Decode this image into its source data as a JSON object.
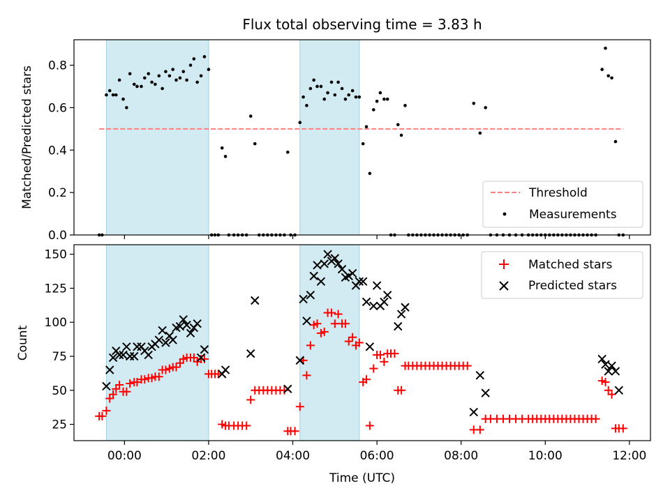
{
  "chart_data": {
    "title": "Flux total observing time = 3.83 h",
    "xlabel": "Time (UTC)",
    "x_unit": "hours (UTC, relative to 00:00)",
    "xlim": [
      -1.2,
      12.5
    ],
    "xticks": [
      {
        "h": 0,
        "label": "00:00"
      },
      {
        "h": 2,
        "label": "02:00"
      },
      {
        "h": 4,
        "label": "04:00"
      },
      {
        "h": 6,
        "label": "06:00"
      },
      {
        "h": 8,
        "label": "08:00"
      },
      {
        "h": 10,
        "label": "10:00"
      },
      {
        "h": 12,
        "label": "12:00"
      }
    ],
    "observing_windows": [
      [
        -0.43,
        2.0
      ],
      [
        4.17,
        5.58
      ]
    ],
    "colors": {
      "window": "#add8e6",
      "threshold": "#ff7f7f",
      "matched": "#ff0000",
      "predicted": "#000000",
      "measurement": "#000000"
    },
    "top": {
      "type": "scatter",
      "ylabel": "Matched/Predicted stars",
      "ylim": [
        0,
        0.92
      ],
      "yticks": [
        "0.0",
        "0.2",
        "0.4",
        "0.6",
        "0.8"
      ],
      "threshold": 0.5,
      "threshold_range": [
        -0.6,
        11.85
      ],
      "legend": {
        "threshold": "Threshold",
        "measurements": "Measurements"
      },
      "legend_position": "lower right",
      "points": [
        [
          -0.6,
          0
        ],
        [
          -0.53,
          0
        ],
        [
          -0.43,
          0.66
        ],
        [
          -0.35,
          0.68
        ],
        [
          -0.27,
          0.66
        ],
        [
          -0.2,
          0.66
        ],
        [
          -0.12,
          0.73
        ],
        [
          -0.03,
          0.64
        ],
        [
          0.05,
          0.6
        ],
        [
          0.13,
          0.76
        ],
        [
          0.23,
          0.71
        ],
        [
          0.3,
          0.7
        ],
        [
          0.4,
          0.7
        ],
        [
          0.48,
          0.74
        ],
        [
          0.57,
          0.76
        ],
        [
          0.65,
          0.72
        ],
        [
          0.73,
          0.71
        ],
        [
          0.82,
          0.75
        ],
        [
          0.9,
          0.69
        ],
        [
          0.98,
          0.77
        ],
        [
          1.07,
          0.75
        ],
        [
          1.15,
          0.78
        ],
        [
          1.23,
          0.73
        ],
        [
          1.32,
          0.74
        ],
        [
          1.4,
          0.77
        ],
        [
          1.48,
          0.73
        ],
        [
          1.57,
          0.8
        ],
        [
          1.65,
          0.83
        ],
        [
          1.73,
          0.72
        ],
        [
          1.82,
          0.75
        ],
        [
          1.9,
          0.84
        ],
        [
          2.0,
          0.78
        ],
        [
          2.07,
          0
        ],
        [
          2.15,
          0
        ],
        [
          2.23,
          0
        ],
        [
          2.32,
          0.41
        ],
        [
          2.4,
          0.37
        ],
        [
          2.48,
          0
        ],
        [
          2.6,
          0
        ],
        [
          2.7,
          0
        ],
        [
          2.8,
          0
        ],
        [
          2.9,
          0
        ],
        [
          3.0,
          0.56
        ],
        [
          3.1,
          0.43
        ],
        [
          3.2,
          0
        ],
        [
          3.3,
          0
        ],
        [
          3.4,
          0
        ],
        [
          3.5,
          0
        ],
        [
          3.6,
          0
        ],
        [
          3.7,
          0
        ],
        [
          3.8,
          0
        ],
        [
          3.88,
          0.39
        ],
        [
          3.95,
          0
        ],
        [
          4.05,
          0
        ],
        [
          4.17,
          0.53
        ],
        [
          4.25,
          0.65
        ],
        [
          4.33,
          0.61
        ],
        [
          4.42,
          0.69
        ],
        [
          4.5,
          0.73
        ],
        [
          4.58,
          0.7
        ],
        [
          4.67,
          0.7
        ],
        [
          4.75,
          0.64
        ],
        [
          4.83,
          0.67
        ],
        [
          4.92,
          0.72
        ],
        [
          5.0,
          0.66
        ],
        [
          5.08,
          0.72
        ],
        [
          5.17,
          0.69
        ],
        [
          5.25,
          0.64
        ],
        [
          5.33,
          0.66
        ],
        [
          5.42,
          0.68
        ],
        [
          5.5,
          0.65
        ],
        [
          5.58,
          0.65
        ],
        [
          5.67,
          0.43
        ],
        [
          5.75,
          0.51
        ],
        [
          5.83,
          0.29
        ],
        [
          5.92,
          0.59
        ],
        [
          6.0,
          0.63
        ],
        [
          6.08,
          0.67
        ],
        [
          6.17,
          0.64
        ],
        [
          6.25,
          0.64
        ],
        [
          6.33,
          0
        ],
        [
          6.42,
          0
        ],
        [
          6.5,
          0.52
        ],
        [
          6.58,
          0.47
        ],
        [
          6.67,
          0.61
        ],
        [
          6.75,
          0
        ],
        [
          6.85,
          0
        ],
        [
          6.95,
          0
        ],
        [
          7.05,
          0
        ],
        [
          7.15,
          0
        ],
        [
          7.25,
          0
        ],
        [
          7.35,
          0
        ],
        [
          7.45,
          0
        ],
        [
          7.55,
          0
        ],
        [
          7.65,
          0
        ],
        [
          7.75,
          0
        ],
        [
          7.85,
          0
        ],
        [
          7.95,
          0
        ],
        [
          8.05,
          0
        ],
        [
          8.15,
          0
        ],
        [
          8.3,
          0.62
        ],
        [
          8.45,
          0.48
        ],
        [
          8.58,
          0.6
        ],
        [
          8.7,
          0
        ],
        [
          8.85,
          0
        ],
        [
          9.0,
          0
        ],
        [
          9.15,
          0
        ],
        [
          9.3,
          0
        ],
        [
          9.45,
          0
        ],
        [
          9.6,
          0
        ],
        [
          9.7,
          0
        ],
        [
          9.8,
          0
        ],
        [
          9.9,
          0
        ],
        [
          10.0,
          0
        ],
        [
          10.1,
          0
        ],
        [
          10.2,
          0
        ],
        [
          10.3,
          0
        ],
        [
          10.4,
          0
        ],
        [
          10.5,
          0
        ],
        [
          10.6,
          0
        ],
        [
          10.7,
          0
        ],
        [
          10.8,
          0
        ],
        [
          10.9,
          0
        ],
        [
          11.0,
          0
        ],
        [
          11.1,
          0
        ],
        [
          11.2,
          0
        ],
        [
          11.35,
          0.78
        ],
        [
          11.43,
          0.88
        ],
        [
          11.5,
          0.75
        ],
        [
          11.58,
          0.74
        ],
        [
          11.67,
          0.44
        ],
        [
          11.75,
          0
        ],
        [
          11.85,
          0
        ]
      ]
    },
    "bottom": {
      "type": "scatter",
      "ylabel": "Count",
      "ylim": [
        13,
        157
      ],
      "yticks": [
        "25",
        "50",
        "75",
        "100",
        "125",
        "150"
      ],
      "ytick_values": [
        25,
        50,
        75,
        100,
        125,
        150
      ],
      "legend": {
        "matched": "Matched stars",
        "predicted": "Predicted stars"
      },
      "legend_position": "upper right",
      "matched": [
        [
          -0.6,
          31
        ],
        [
          -0.53,
          31
        ],
        [
          -0.43,
          35
        ],
        [
          -0.35,
          44
        ],
        [
          -0.27,
          47
        ],
        [
          -0.2,
          51
        ],
        [
          -0.12,
          54
        ],
        [
          -0.03,
          49
        ],
        [
          0.05,
          49
        ],
        [
          0.13,
          55
        ],
        [
          0.23,
          56
        ],
        [
          0.3,
          56
        ],
        [
          0.4,
          58
        ],
        [
          0.48,
          58
        ],
        [
          0.57,
          59
        ],
        [
          0.65,
          59
        ],
        [
          0.73,
          60
        ],
        [
          0.82,
          60
        ],
        [
          0.9,
          65
        ],
        [
          0.98,
          65
        ],
        [
          1.07,
          66
        ],
        [
          1.15,
          67
        ],
        [
          1.23,
          67
        ],
        [
          1.32,
          70
        ],
        [
          1.4,
          73
        ],
        [
          1.48,
          74
        ],
        [
          1.57,
          74
        ],
        [
          1.65,
          74
        ],
        [
          1.73,
          71
        ],
        [
          1.82,
          73
        ],
        [
          1.9,
          73
        ],
        [
          2.0,
          62
        ],
        [
          2.07,
          62
        ],
        [
          2.15,
          62
        ],
        [
          2.23,
          62
        ],
        [
          2.32,
          25
        ],
        [
          2.4,
          24
        ],
        [
          2.48,
          24
        ],
        [
          2.6,
          24
        ],
        [
          2.7,
          24
        ],
        [
          2.8,
          24
        ],
        [
          2.9,
          24
        ],
        [
          3.0,
          43
        ],
        [
          3.1,
          50
        ],
        [
          3.2,
          50
        ],
        [
          3.3,
          50
        ],
        [
          3.4,
          50
        ],
        [
          3.5,
          50
        ],
        [
          3.6,
          50
        ],
        [
          3.7,
          50
        ],
        [
          3.8,
          50
        ],
        [
          3.88,
          20
        ],
        [
          3.95,
          20
        ],
        [
          4.05,
          20
        ],
        [
          4.17,
          38
        ],
        [
          4.25,
          72
        ],
        [
          4.33,
          61
        ],
        [
          4.42,
          83
        ],
        [
          4.5,
          98
        ],
        [
          4.58,
          99
        ],
        [
          4.67,
          92
        ],
        [
          4.75,
          93
        ],
        [
          4.83,
          107
        ],
        [
          4.92,
          107
        ],
        [
          5.0,
          99
        ],
        [
          5.08,
          106
        ],
        [
          5.17,
          99
        ],
        [
          5.25,
          99
        ],
        [
          5.33,
          86
        ],
        [
          5.42,
          89
        ],
        [
          5.5,
          83
        ],
        [
          5.58,
          85
        ],
        [
          5.67,
          56
        ],
        [
          5.75,
          58
        ],
        [
          5.83,
          24
        ],
        [
          5.92,
          66
        ],
        [
          6.0,
          76
        ],
        [
          6.08,
          76
        ],
        [
          6.17,
          71
        ],
        [
          6.25,
          77
        ],
        [
          6.33,
          77
        ],
        [
          6.42,
          77
        ],
        [
          6.5,
          50
        ],
        [
          6.58,
          50
        ],
        [
          6.67,
          68
        ],
        [
          6.75,
          68
        ],
        [
          6.85,
          68
        ],
        [
          6.95,
          68
        ],
        [
          7.05,
          68
        ],
        [
          7.15,
          68
        ],
        [
          7.25,
          68
        ],
        [
          7.35,
          68
        ],
        [
          7.45,
          68
        ],
        [
          7.55,
          68
        ],
        [
          7.65,
          68
        ],
        [
          7.75,
          68
        ],
        [
          7.85,
          68
        ],
        [
          7.95,
          68
        ],
        [
          8.05,
          68
        ],
        [
          8.15,
          68
        ],
        [
          8.3,
          21
        ],
        [
          8.45,
          21
        ],
        [
          8.58,
          29
        ],
        [
          8.7,
          29
        ],
        [
          8.85,
          29
        ],
        [
          9.0,
          29
        ],
        [
          9.15,
          29
        ],
        [
          9.3,
          29
        ],
        [
          9.45,
          29
        ],
        [
          9.6,
          29
        ],
        [
          9.7,
          29
        ],
        [
          9.8,
          29
        ],
        [
          9.9,
          29
        ],
        [
          10.0,
          29
        ],
        [
          10.1,
          29
        ],
        [
          10.2,
          29
        ],
        [
          10.3,
          29
        ],
        [
          10.4,
          29
        ],
        [
          10.5,
          29
        ],
        [
          10.6,
          29
        ],
        [
          10.7,
          29
        ],
        [
          10.8,
          29
        ],
        [
          10.9,
          29
        ],
        [
          11.0,
          29
        ],
        [
          11.1,
          29
        ],
        [
          11.2,
          29
        ],
        [
          11.35,
          57
        ],
        [
          11.43,
          56
        ],
        [
          11.5,
          50
        ],
        [
          11.58,
          47
        ],
        [
          11.67,
          22
        ],
        [
          11.75,
          22
        ],
        [
          11.85,
          22
        ]
      ],
      "predicted": [
        [
          -0.43,
          53
        ],
        [
          -0.35,
          65
        ],
        [
          -0.27,
          74
        ],
        [
          -0.2,
          79
        ],
        [
          -0.12,
          76
        ],
        [
          -0.03,
          76
        ],
        [
          0.05,
          82
        ],
        [
          0.13,
          75
        ],
        [
          0.23,
          75
        ],
        [
          0.3,
          82
        ],
        [
          0.4,
          82
        ],
        [
          0.48,
          79
        ],
        [
          0.57,
          76
        ],
        [
          0.65,
          82
        ],
        [
          0.73,
          84
        ],
        [
          0.82,
          87
        ],
        [
          0.9,
          94
        ],
        [
          0.98,
          85
        ],
        [
          1.07,
          90
        ],
        [
          1.15,
          87
        ],
        [
          1.23,
          96
        ],
        [
          1.32,
          97
        ],
        [
          1.4,
          102
        ],
        [
          1.48,
          98
        ],
        [
          1.57,
          92
        ],
        [
          1.65,
          96
        ],
        [
          1.73,
          99
        ],
        [
          1.82,
          74
        ],
        [
          1.9,
          80
        ],
        [
          2.32,
          62
        ],
        [
          2.4,
          65
        ],
        [
          3.0,
          77
        ],
        [
          3.1,
          116
        ],
        [
          3.88,
          51
        ],
        [
          4.17,
          72
        ],
        [
          4.25,
          117
        ],
        [
          4.33,
          101
        ],
        [
          4.42,
          120
        ],
        [
          4.5,
          134
        ],
        [
          4.58,
          142
        ],
        [
          4.67,
          130
        ],
        [
          4.75,
          143
        ],
        [
          4.83,
          150
        ],
        [
          4.92,
          145
        ],
        [
          5.0,
          147
        ],
        [
          5.08,
          143
        ],
        [
          5.17,
          139
        ],
        [
          5.25,
          133
        ],
        [
          5.33,
          134
        ],
        [
          5.42,
          136
        ],
        [
          5.5,
          127
        ],
        [
          5.58,
          130
        ],
        [
          5.67,
          130
        ],
        [
          5.75,
          115
        ],
        [
          5.83,
          82
        ],
        [
          5.92,
          112
        ],
        [
          6.0,
          127
        ],
        [
          6.08,
          112
        ],
        [
          6.17,
          115
        ],
        [
          6.25,
          120
        ],
        [
          6.5,
          97
        ],
        [
          6.58,
          106
        ],
        [
          6.67,
          111
        ],
        [
          8.3,
          34
        ],
        [
          8.45,
          61
        ],
        [
          8.58,
          48
        ],
        [
          11.35,
          73
        ],
        [
          11.43,
          69
        ],
        [
          11.5,
          64
        ],
        [
          11.58,
          68
        ],
        [
          11.67,
          64
        ],
        [
          11.75,
          50
        ]
      ]
    }
  }
}
